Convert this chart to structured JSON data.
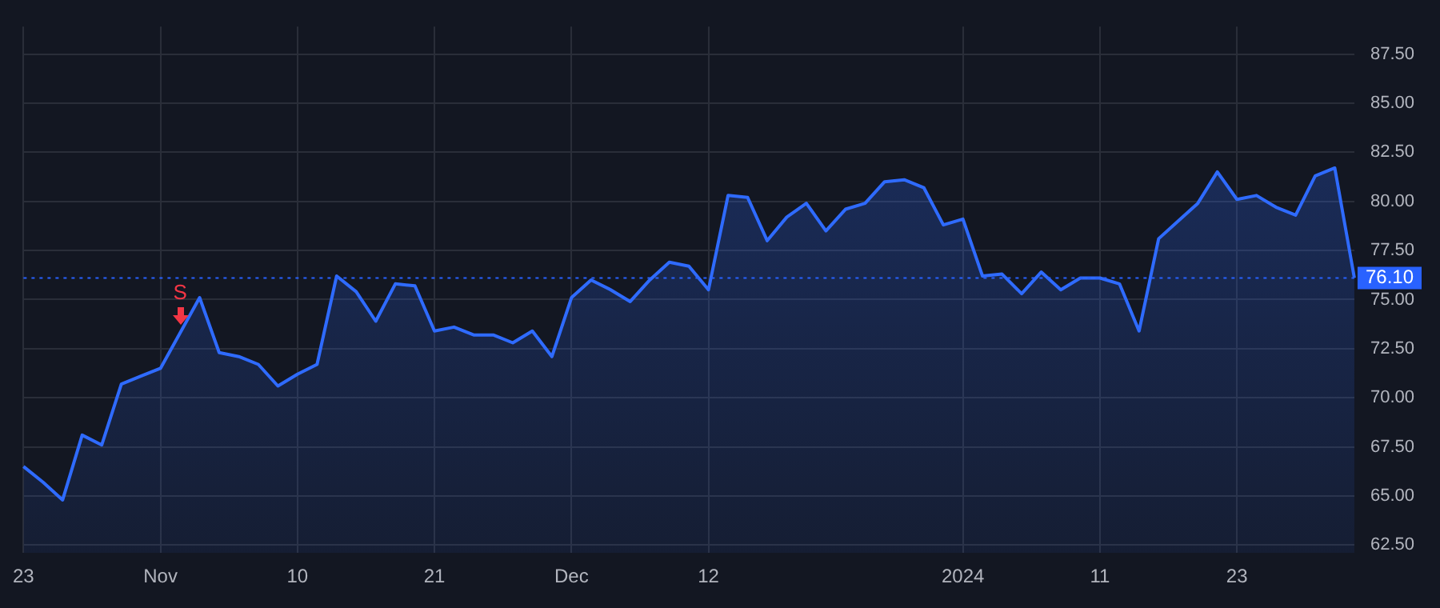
{
  "chart_data": {
    "type": "area",
    "categories": [
      "23",
      null,
      null,
      null,
      null,
      null,
      null,
      "Nov",
      null,
      null,
      null,
      null,
      null,
      null,
      "10",
      null,
      null,
      null,
      null,
      null,
      null,
      "21",
      null,
      null,
      null,
      null,
      null,
      null,
      "Dec",
      null,
      null,
      null,
      null,
      null,
      null,
      "12",
      null,
      null,
      null,
      null,
      null,
      null,
      null,
      null,
      null,
      null,
      null,
      null,
      "2024",
      null,
      null,
      null,
      null,
      null,
      null,
      "11",
      null,
      null,
      null,
      null,
      null,
      null,
      "23",
      null,
      null,
      null,
      null,
      null,
      null
    ],
    "series": [
      {
        "color": "#2f6bff",
        "values": [
          66.5,
          65.7,
          64.8,
          68.1,
          67.6,
          70.7,
          71.1,
          71.5,
          73.3,
          75.1,
          72.3,
          72.1,
          71.7,
          70.6,
          71.2,
          71.7,
          76.2,
          75.4,
          73.9,
          75.8,
          75.7,
          73.4,
          73.6,
          73.2,
          73.2,
          72.8,
          73.4,
          72.1,
          75.1,
          76.0,
          75.5,
          74.9,
          76.0,
          76.9,
          76.7,
          75.5,
          80.3,
          80.2,
          78.0,
          79.2,
          79.9,
          78.5,
          79.6,
          79.9,
          81.0,
          81.1,
          80.7,
          78.8,
          79.1,
          76.2,
          76.3,
          75.3,
          76.4,
          75.5,
          76.1,
          76.1,
          75.8,
          73.4,
          78.1,
          79.0,
          79.9,
          81.5,
          80.1,
          80.3,
          79.7,
          79.3,
          81.3,
          81.7,
          76.1
        ]
      }
    ],
    "ylim": [
      62.1,
      88.9
    ],
    "yticks": [
      {
        "value": 62.5,
        "label": "62.50"
      },
      {
        "value": 65,
        "label": "65.00"
      },
      {
        "value": 67.5,
        "label": "67.50"
      },
      {
        "value": 70,
        "label": "70.00"
      },
      {
        "value": 72.5,
        "label": "72.50"
      },
      {
        "value": 75,
        "label": "75.00"
      },
      {
        "value": 77.5,
        "label": "77.50"
      },
      {
        "value": 80,
        "label": "80.00"
      },
      {
        "value": 82.5,
        "label": "82.50"
      },
      {
        "value": 85,
        "label": "85.00"
      },
      {
        "value": 87.5,
        "label": "87.50"
      }
    ],
    "ref_lines": [
      {
        "axis": "y",
        "value": 76.1,
        "label": "76.10",
        "color": "#2962ff",
        "line_style": "dotted"
      }
    ],
    "annotations": [
      "S"
    ],
    "grid": true,
    "marker": "none",
    "line_style": "solid"
  }
}
